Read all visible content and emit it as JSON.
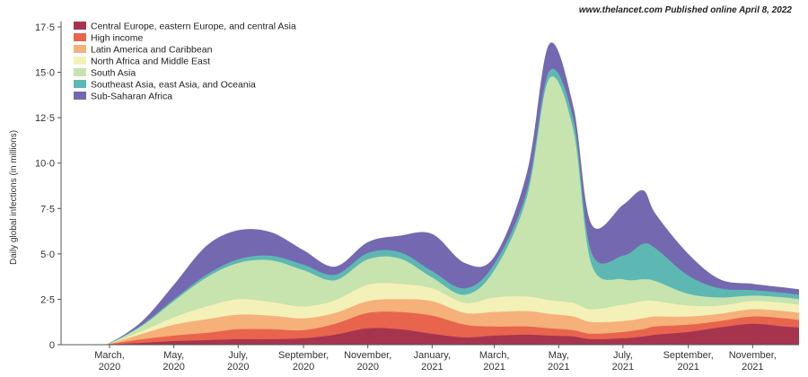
{
  "header": {
    "source_note": "www.thelancet.com Published online April 8, 2022"
  },
  "colors": {
    "Central Europe, eastern Europe, and central Asia": "#a7344f",
    "High income": "#e8644d",
    "Latin America and Caribbean": "#f6b07a",
    "North Africa and Middle East": "#f4f1b8",
    "South Asia": "#c7e3ae",
    "Southeast Asia, east Asia, and Oceania": "#5db8b4",
    "Sub-Saharan Africa": "#7469b0"
  },
  "chart_data": {
    "type": "area",
    "stacked": true,
    "title": "",
    "ylabel": "Daily global infections (in millions)",
    "xlabel": "",
    "ylim": [
      0,
      17.5
    ],
    "xlim": [
      "2020-01-15",
      "2021-12-15"
    ],
    "yticks": [
      0,
      2.5,
      5,
      7.5,
      10,
      12.5,
      15,
      17.5
    ],
    "ytick_labels": [
      "0",
      "2·5",
      "5·0",
      "7·5",
      "10·0",
      "12·5",
      "15·0",
      "17·5"
    ],
    "xticks": [
      {
        "date": "2020-03-01",
        "line1": "March,",
        "line2": "2020"
      },
      {
        "date": "2020-05-01",
        "line1": "May,",
        "line2": "2020"
      },
      {
        "date": "2020-07-01",
        "line1": "July,",
        "line2": "2020"
      },
      {
        "date": "2020-09-01",
        "line1": "September,",
        "line2": "2020"
      },
      {
        "date": "2020-11-01",
        "line1": "November,",
        "line2": "2020"
      },
      {
        "date": "2021-01-01",
        "line1": "January,",
        "line2": "2021"
      },
      {
        "date": "2021-03-01",
        "line1": "March,",
        "line2": "2021"
      },
      {
        "date": "2021-05-01",
        "line1": "May,",
        "line2": "2021"
      },
      {
        "date": "2021-07-01",
        "line1": "July,",
        "line2": "2021"
      },
      {
        "date": "2021-09-01",
        "line1": "September,",
        "line2": "2021"
      },
      {
        "date": "2021-11-01",
        "line1": "November,",
        "line2": "2021"
      }
    ],
    "grid": false,
    "legend_position": "top-left",
    "x": [
      "2020-01-15",
      "2020-02-15",
      "2020-03-01",
      "2020-04-01",
      "2020-05-01",
      "2020-06-01",
      "2020-07-01",
      "2020-08-01",
      "2020-09-01",
      "2020-10-01",
      "2020-11-01",
      "2020-12-01",
      "2021-01-01",
      "2021-02-01",
      "2021-03-01",
      "2021-04-01",
      "2021-04-22",
      "2021-05-15",
      "2021-06-01",
      "2021-07-01",
      "2021-07-20",
      "2021-08-01",
      "2021-09-01",
      "2021-10-01",
      "2021-11-01",
      "2021-12-01",
      "2021-12-15"
    ],
    "series": [
      {
        "name": "Central Europe, eastern Europe, and central Asia",
        "values": [
          0,
          0,
          0.02,
          0.1,
          0.2,
          0.25,
          0.3,
          0.3,
          0.35,
          0.55,
          0.9,
          0.85,
          0.6,
          0.4,
          0.5,
          0.55,
          0.5,
          0.45,
          0.3,
          0.35,
          0.45,
          0.55,
          0.7,
          0.95,
          1.15,
          1.0,
          0.95
        ]
      },
      {
        "name": "High income",
        "values": [
          0,
          0,
          0.02,
          0.2,
          0.3,
          0.4,
          0.55,
          0.55,
          0.45,
          0.6,
          0.85,
          0.95,
          1.0,
          0.7,
          0.5,
          0.45,
          0.4,
          0.35,
          0.3,
          0.35,
          0.4,
          0.45,
          0.4,
          0.35,
          0.4,
          0.45,
          0.4
        ]
      },
      {
        "name": "Latin America and Caribbean",
        "values": [
          0,
          0,
          0.02,
          0.3,
          0.6,
          0.75,
          0.8,
          0.75,
          0.65,
          0.6,
          0.65,
          0.7,
          0.8,
          0.65,
          0.8,
          0.85,
          0.8,
          0.75,
          0.65,
          0.6,
          0.6,
          0.55,
          0.45,
          0.4,
          0.4,
          0.4,
          0.4
        ]
      },
      {
        "name": "North Africa and Middle East",
        "values": [
          0,
          0,
          0.01,
          0.15,
          0.4,
          0.7,
          0.85,
          0.75,
          0.65,
          0.7,
          0.9,
          0.85,
          0.7,
          0.55,
          0.8,
          0.8,
          0.75,
          0.75,
          0.7,
          0.9,
          0.95,
          0.85,
          0.6,
          0.45,
          0.45,
          0.45,
          0.45
        ]
      },
      {
        "name": "South Asia",
        "values": [
          0,
          0,
          0.01,
          0.3,
          0.9,
          1.6,
          2.0,
          2.3,
          2.0,
          1.1,
          1.4,
          1.4,
          0.6,
          0.45,
          1.5,
          5.5,
          12.2,
          9.5,
          2.5,
          1.4,
          1.2,
          1.1,
          0.65,
          0.45,
          0.3,
          0.3,
          0.3
        ]
      },
      {
        "name": "Southeast Asia, east Asia, and Oceania",
        "values": [
          0,
          0,
          0.01,
          0.05,
          0.1,
          0.15,
          0.2,
          0.25,
          0.3,
          0.3,
          0.35,
          0.35,
          0.35,
          0.35,
          0.35,
          0.35,
          0.4,
          0.6,
          0.65,
          1.3,
          1.95,
          1.8,
          1.0,
          0.5,
          0.3,
          0.25,
          0.25
        ]
      },
      {
        "name": "Sub-Saharan Africa",
        "values": [
          0,
          0,
          0.01,
          0.2,
          0.8,
          1.6,
          1.6,
          1.3,
          0.8,
          0.45,
          0.6,
          0.9,
          2.05,
          1.4,
          0.4,
          1.0,
          1.5,
          0.7,
          1.55,
          2.8,
          2.95,
          1.9,
          1.2,
          0.5,
          0.35,
          0.3,
          0.3
        ]
      }
    ]
  }
}
